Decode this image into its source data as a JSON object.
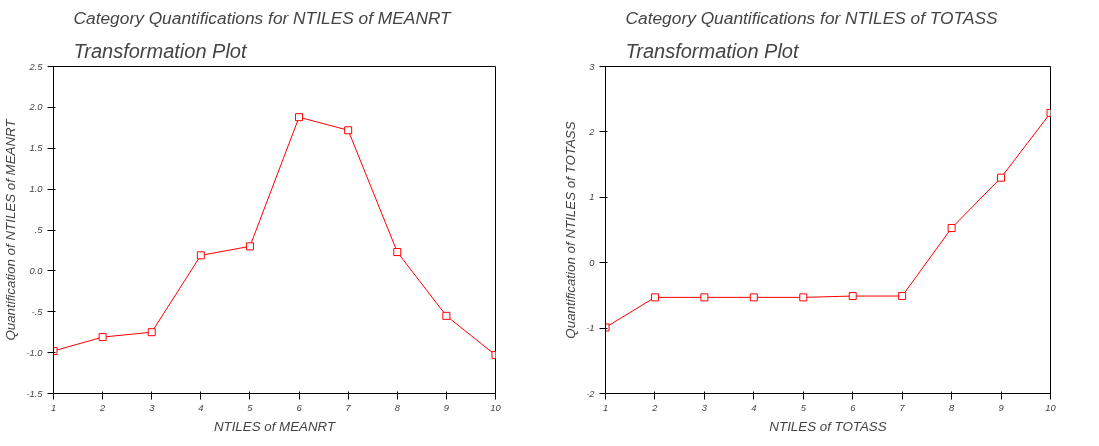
{
  "chart_data": [
    {
      "type": "line",
      "title": "Category Quantifications for NTILES of MEANRT",
      "subtitle": "Transformation Plot",
      "xlabel": "NTILES of MEANRT",
      "ylabel": "Quantification of NTILES of MEANRT",
      "x": [
        1,
        2,
        3,
        4,
        5,
        6,
        7,
        8,
        9,
        10
      ],
      "series": [
        {
          "color": "#ff0000",
          "values": [
            -0.98,
            -0.81,
            -0.75,
            0.19,
            0.3,
            1.88,
            1.72,
            0.23,
            -0.55,
            -1.03
          ]
        }
      ],
      "xlim": [
        1,
        10
      ],
      "xticks": [
        1,
        2,
        3,
        4,
        5,
        6,
        7,
        8,
        9,
        10
      ],
      "ylim": [
        -1.5,
        2.5
      ],
      "yticks": [
        {
          "value": -1.5,
          "label": "-1.5"
        },
        {
          "value": -1.0,
          "label": "-1.0"
        },
        {
          "value": -0.5,
          "label": "-.5"
        },
        {
          "value": 0,
          "label": "0.0"
        },
        {
          "value": 0.5,
          "label": ".5"
        },
        {
          "value": 1.0,
          "label": "1.0"
        },
        {
          "value": 1.5,
          "label": "1.5"
        },
        {
          "value": 2.0,
          "label": "2.0"
        },
        {
          "value": 2.5,
          "label": "2.5"
        }
      ],
      "grid": false,
      "marker": "square",
      "line_style": "solid"
    },
    {
      "type": "line",
      "title": "Category Quantifications for NTILES of TOTASS",
      "subtitle": "Transformation Plot",
      "xlabel": "NTILES of TOTASS",
      "ylabel": "Quantification of NTILES of TOTASS",
      "x": [
        1,
        2,
        3,
        4,
        5,
        6,
        7,
        8,
        9,
        10
      ],
      "series": [
        {
          "color": "#ff0000",
          "values": [
            -0.99,
            -0.53,
            -0.53,
            -0.53,
            -0.53,
            -0.51,
            -0.51,
            0.53,
            1.3,
            2.29
          ]
        }
      ],
      "xlim": [
        1,
        10
      ],
      "xticks": [
        1,
        2,
        3,
        4,
        5,
        6,
        7,
        8,
        9,
        10
      ],
      "ylim": [
        -2,
        3
      ],
      "yticks": [
        -2,
        -1,
        0,
        1,
        2,
        3
      ],
      "grid": false,
      "marker": "square",
      "line_style": "solid"
    }
  ]
}
